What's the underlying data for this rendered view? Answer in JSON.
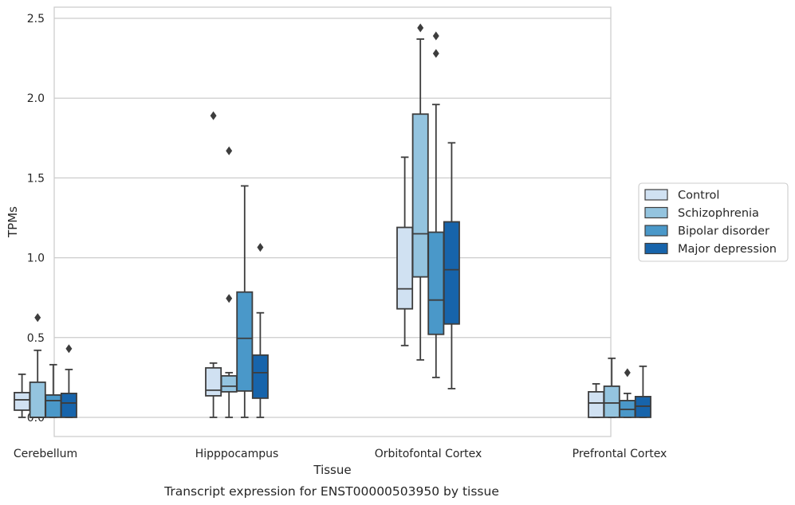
{
  "chart_data": {
    "type": "box",
    "caption": "Transcript expression for ENST00000503950 by tissue",
    "xlabel": "Tissue",
    "ylabel": "TPMs",
    "ylim": [
      -0.12,
      2.57
    ],
    "yticks": [
      "0.0",
      "0.5",
      "1.0",
      "1.5",
      "2.0",
      "2.5"
    ],
    "ytick_values": [
      0,
      0.5,
      1.0,
      1.5,
      2.0,
      2.5
    ],
    "grid": "horizontal",
    "legend_position": "right",
    "categories": [
      "Cerebellum",
      "Hipppocampus",
      "Orbitofontal Cortex",
      "Prefrontal Cortex"
    ],
    "series": [
      {
        "name": "Control",
        "color": "#d0e1f2",
        "boxes": [
          {
            "whisker_low": 0.0,
            "q1": 0.045,
            "median": 0.11,
            "q3": 0.155,
            "whisker_high": 0.27,
            "outliers": []
          },
          {
            "whisker_low": 0.0,
            "q1": 0.135,
            "median": 0.17,
            "q3": 0.31,
            "whisker_high": 0.34,
            "outliers": [
              1.89
            ]
          },
          {
            "whisker_low": 0.45,
            "q1": 0.68,
            "median": 0.805,
            "q3": 1.19,
            "whisker_high": 1.63,
            "outliers": []
          },
          {
            "whisker_low": 0.0,
            "q1": 0.0,
            "median": 0.09,
            "q3": 0.16,
            "whisker_high": 0.21,
            "outliers": []
          }
        ]
      },
      {
        "name": "Schizophrenia",
        "color": "#94c4df",
        "boxes": [
          {
            "whisker_low": 0.0,
            "q1": 0.0,
            "median": 0.0,
            "q3": 0.22,
            "whisker_high": 0.42,
            "outliers": [
              0.625
            ]
          },
          {
            "whisker_low": 0.0,
            "q1": 0.16,
            "median": 0.195,
            "q3": 0.26,
            "whisker_high": 0.28,
            "outliers": [
              0.745,
              1.67
            ]
          },
          {
            "whisker_low": 0.36,
            "q1": 0.88,
            "median": 1.15,
            "q3": 1.9,
            "whisker_high": 2.37,
            "outliers": [
              2.44
            ]
          },
          {
            "whisker_low": 0.0,
            "q1": 0.0,
            "median": 0.09,
            "q3": 0.195,
            "whisker_high": 0.37,
            "outliers": []
          }
        ]
      },
      {
        "name": "Bipolar disorder",
        "color": "#4a98c9",
        "boxes": [
          {
            "whisker_low": 0.0,
            "q1": 0.0,
            "median": 0.105,
            "q3": 0.14,
            "whisker_high": 0.33,
            "outliers": []
          },
          {
            "whisker_low": 0.0,
            "q1": 0.165,
            "median": 0.495,
            "q3": 0.785,
            "whisker_high": 1.45,
            "outliers": []
          },
          {
            "whisker_low": 0.25,
            "q1": 0.52,
            "median": 0.735,
            "q3": 1.16,
            "whisker_high": 1.96,
            "outliers": [
              2.28,
              2.39
            ]
          },
          {
            "whisker_low": 0.0,
            "q1": 0.0,
            "median": 0.05,
            "q3": 0.105,
            "whisker_high": 0.15,
            "outliers": [
              0.28
            ]
          }
        ]
      },
      {
        "name": "Major depression",
        "color": "#1764ab",
        "boxes": [
          {
            "whisker_low": 0.0,
            "q1": 0.0,
            "median": 0.09,
            "q3": 0.15,
            "whisker_high": 0.3,
            "outliers": [
              0.43
            ]
          },
          {
            "whisker_low": 0.0,
            "q1": 0.12,
            "median": 0.28,
            "q3": 0.39,
            "whisker_high": 0.655,
            "outliers": [
              1.065
            ]
          },
          {
            "whisker_low": 0.18,
            "q1": 0.585,
            "median": 0.925,
            "q3": 1.225,
            "whisker_high": 1.72,
            "outliers": []
          },
          {
            "whisker_low": 0.0,
            "q1": 0.0,
            "median": 0.07,
            "q3": 0.13,
            "whisker_high": 0.32,
            "outliers": []
          }
        ]
      }
    ]
  }
}
